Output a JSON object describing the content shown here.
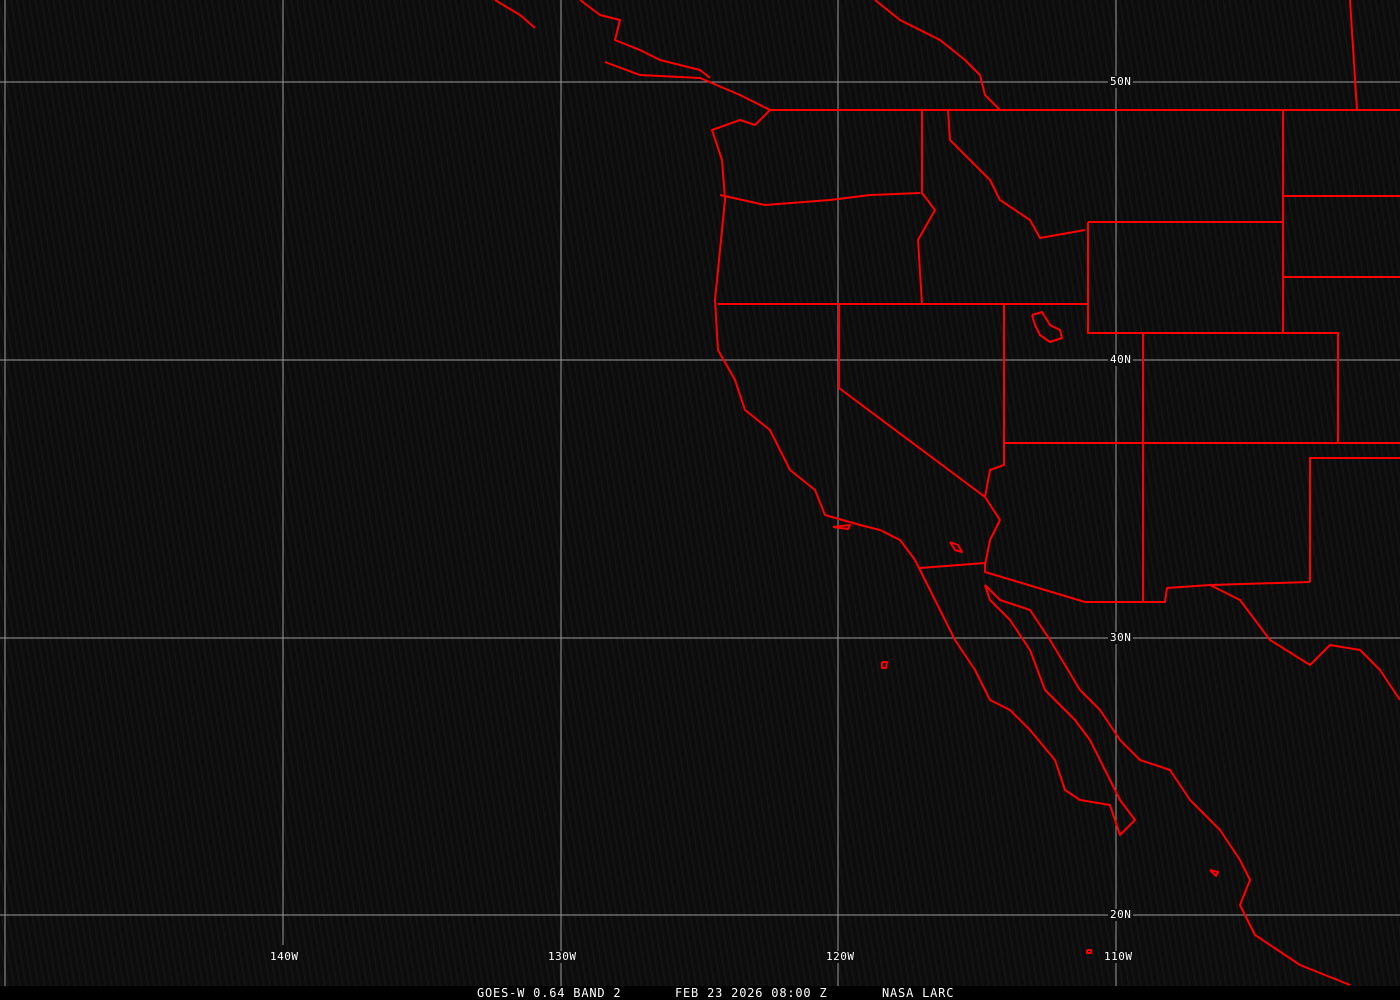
{
  "colors": {
    "boundaries": "#ff0000",
    "graticule": "#9a9a9a",
    "background": "#0e0e0e"
  },
  "graticule": {
    "latitudes": [
      "50N",
      "40N",
      "30N",
      "20N"
    ],
    "longitudes": [
      "140W",
      "130W",
      "120W",
      "110W"
    ]
  },
  "caption": {
    "product": "GOES-W 0.64 BAND 2",
    "datetime": "FEB 23 2026 08:00 Z",
    "source": "NASA LARC"
  }
}
